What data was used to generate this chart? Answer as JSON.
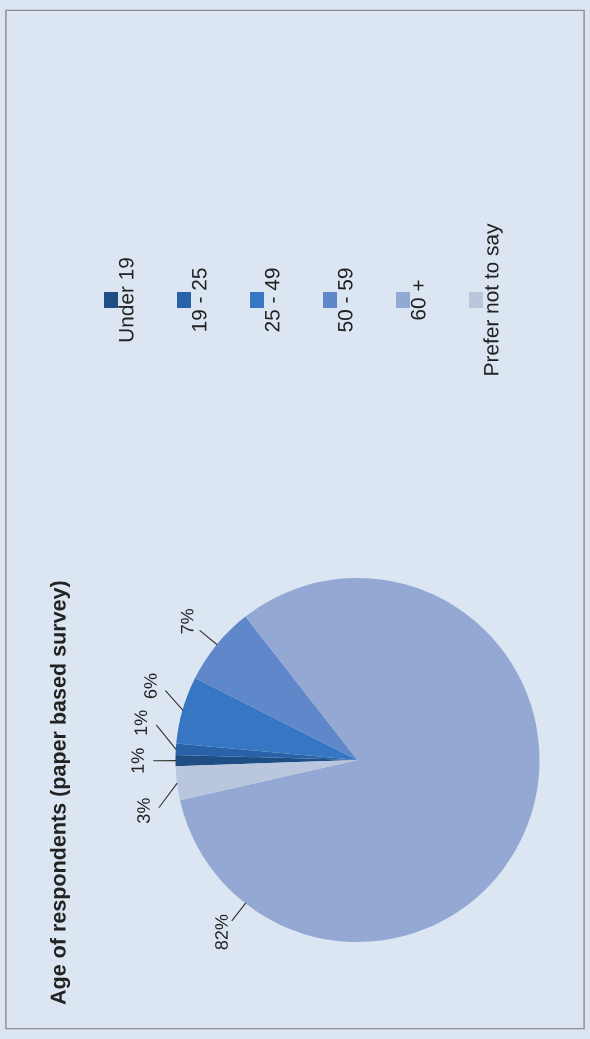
{
  "chart_data": {
    "type": "pie",
    "title": "Age of respondents (paper based survey)",
    "categories": [
      "Under 19",
      "19 - 25",
      "25 - 49",
      "50 - 59",
      "60 +",
      "Prefer not to say"
    ],
    "values": [
      1,
      1,
      6,
      7,
      82,
      3
    ],
    "value_labels": [
      "1%",
      "1%",
      "6%",
      "7%",
      "82%",
      "3%"
    ],
    "colors": [
      "#1f4e85",
      "#2a62a8",
      "#3676c2",
      "#5f87c9",
      "#93a9d3",
      "#b9c6de"
    ],
    "legend": "top"
  }
}
